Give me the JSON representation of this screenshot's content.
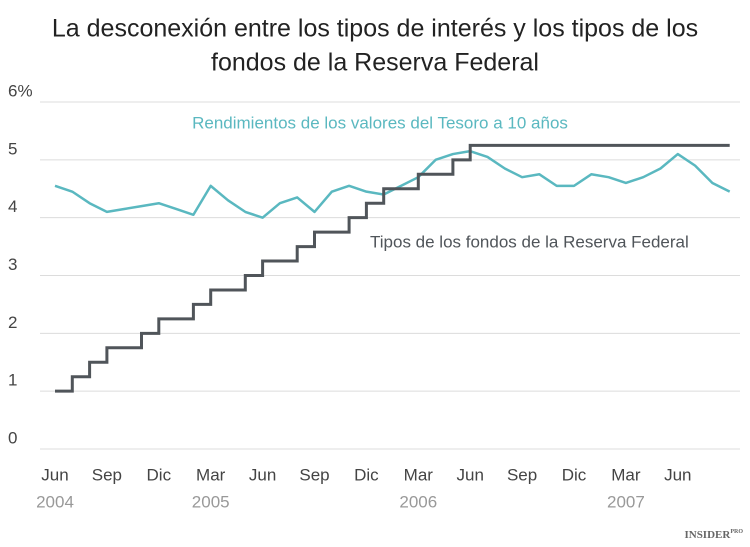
{
  "chart_data": {
    "type": "line",
    "title": [
      "La desconexión entre los tipos de interés y los tipos de los",
      "fondos de la Reserva Federal"
    ],
    "x": [
      "2004-06",
      "2004-07",
      "2004-08",
      "2004-09",
      "2004-10",
      "2004-11",
      "2004-12",
      "2005-01",
      "2005-02",
      "2005-03",
      "2005-04",
      "2005-05",
      "2005-06",
      "2005-07",
      "2005-08",
      "2005-09",
      "2005-10",
      "2005-11",
      "2005-12",
      "2006-01",
      "2006-02",
      "2006-03",
      "2006-04",
      "2006-05",
      "2006-06",
      "2006-07",
      "2006-08",
      "2006-09",
      "2006-10",
      "2006-11",
      "2006-12",
      "2007-01",
      "2007-02",
      "2007-03",
      "2007-04",
      "2007-05",
      "2007-06",
      "2007-07",
      "2007-08",
      "2007-09"
    ],
    "series": [
      {
        "name": "Rendimientos de los valores del Tesoro a 10 años",
        "color": "#5ab8c0",
        "step": false,
        "values": [
          4.55,
          4.45,
          4.25,
          4.1,
          4.15,
          4.2,
          4.25,
          4.15,
          4.05,
          4.55,
          4.3,
          4.1,
          4.0,
          4.25,
          4.35,
          4.1,
          4.45,
          4.55,
          4.45,
          4.4,
          4.55,
          4.7,
          5.0,
          5.1,
          5.15,
          5.05,
          4.85,
          4.7,
          4.75,
          4.55,
          4.55,
          4.75,
          4.7,
          4.6,
          4.7,
          4.85,
          5.1,
          4.9,
          4.6,
          4.45
        ]
      },
      {
        "name": "Tipos de los fondos de la Reserva Federal",
        "color": "#50555a",
        "step": true,
        "values": [
          1.0,
          1.25,
          1.5,
          1.75,
          1.75,
          2.0,
          2.25,
          2.25,
          2.5,
          2.75,
          2.75,
          3.0,
          3.25,
          3.25,
          3.5,
          3.75,
          3.75,
          4.0,
          4.25,
          4.5,
          4.5,
          4.75,
          4.75,
          5.0,
          5.25,
          5.25,
          5.25,
          5.25,
          5.25,
          5.25,
          5.25,
          5.25,
          5.25,
          5.25,
          5.25,
          5.25,
          5.25,
          5.25,
          5.25,
          5.25
        ]
      }
    ],
    "ylim": [
      0,
      6
    ],
    "yticks": [
      0,
      1,
      2,
      3,
      4,
      5,
      {
        "value": 6,
        "label": "6%"
      }
    ],
    "xticks": [
      {
        "value": "2004-06",
        "label": "Jun"
      },
      {
        "value": "2004-09",
        "label": "Sep"
      },
      {
        "value": "2004-12",
        "label": "Dic"
      },
      {
        "value": "2005-03",
        "label": "Mar"
      },
      {
        "value": "2005-06",
        "label": "Jun"
      },
      {
        "value": "2005-09",
        "label": "Sep"
      },
      {
        "value": "2005-12",
        "label": "Dic"
      },
      {
        "value": "2006-03",
        "label": "Mar"
      },
      {
        "value": "2006-06",
        "label": "Jun"
      },
      {
        "value": "2006-09",
        "label": "Sep"
      },
      {
        "value": "2006-12",
        "label": "Dic"
      },
      {
        "value": "2007-03",
        "label": "Mar"
      },
      {
        "value": "2007-06",
        "label": "Jun"
      }
    ],
    "xtick_years": [
      {
        "value": "2004-06",
        "label": "2004"
      },
      {
        "value": "2005-03",
        "label": "2005"
      },
      {
        "value": "2006-03",
        "label": "2006"
      },
      {
        "value": "2007-03",
        "label": "2007"
      }
    ],
    "grid": true,
    "logo": {
      "main": "INSIDER",
      "sub": "PRO"
    }
  }
}
